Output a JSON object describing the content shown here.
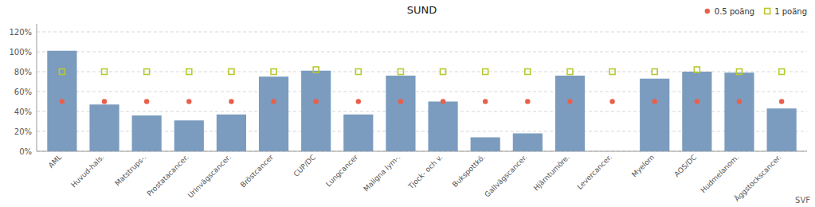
{
  "chart_data": {
    "type": "bar",
    "title": "SUND",
    "annotations": [
      "SVF"
    ],
    "categories": [
      "AML",
      "Huvud-hals.",
      "Matstrups-.",
      "Prostatacancer.",
      "Urinvägscancer.",
      "Bröstcancer",
      "CUP/DC",
      "Lungcancer",
      "Maligna lym-.",
      "Tjock- och v.",
      "Bukspottkö.",
      "Gallvägscancer.",
      "Hjärntumöre.",
      "Levercancer.",
      "Myelom",
      "AOS/DC",
      "Hudmelanom.",
      "Äggstockscancer."
    ],
    "series": [
      {
        "type": "bar",
        "color": "#7b9cbf",
        "values": [
          1.01,
          0.47,
          0.36,
          0.31,
          0.37,
          0.75,
          0.81,
          0.37,
          0.76,
          0.5,
          0.14,
          0.18,
          0.76,
          0.0,
          0.73,
          0.8,
          0.79,
          0.43
        ]
      },
      {
        "name": "0.5 poäng",
        "type": "scatter",
        "marker": "circle",
        "color": "#e8604c",
        "values": [
          0.5,
          0.5,
          0.5,
          0.5,
          0.5,
          0.5,
          0.5,
          0.5,
          0.5,
          0.5,
          0.5,
          0.5,
          0.5,
          0.5,
          0.5,
          0.5,
          0.5,
          0.5
        ]
      },
      {
        "name": "1 poäng",
        "type": "scatter",
        "marker": "square",
        "color": "#b8c830",
        "values": [
          0.8,
          0.8,
          0.8,
          0.8,
          0.8,
          0.8,
          0.82,
          0.8,
          0.8,
          0.8,
          0.8,
          0.8,
          0.8,
          0.8,
          0.8,
          0.82,
          0.8,
          0.8
        ]
      }
    ],
    "ylim": [
      0,
      1.28
    ],
    "yticks": [
      {
        "value": 0.0,
        "label": "0%"
      },
      {
        "value": 0.2,
        "label": "20%"
      },
      {
        "value": 0.4,
        "label": "40%"
      },
      {
        "value": 0.6,
        "label": "60%"
      },
      {
        "value": 0.8,
        "label": "80%"
      },
      {
        "value": 1.0,
        "label": "100%"
      },
      {
        "value": 1.2,
        "label": "120%"
      }
    ],
    "grid": true,
    "legend": "upper right"
  }
}
